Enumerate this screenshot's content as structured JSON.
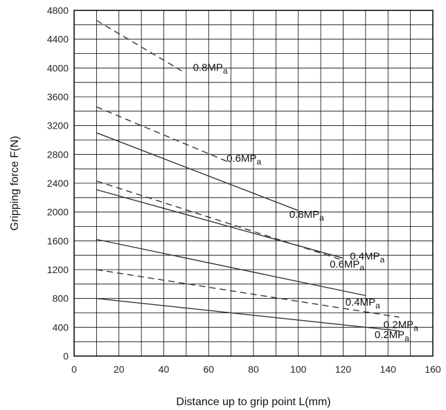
{
  "chart_data": {
    "type": "line",
    "xlabel": "Distance up to grip point  L(mm)",
    "ylabel": "Gripping force  F(N)",
    "xlim": [
      0,
      160
    ],
    "ylim": [
      0,
      4800
    ],
    "xticks": [
      0,
      20,
      40,
      60,
      80,
      100,
      120,
      140,
      160
    ],
    "yticks": [
      0,
      400,
      800,
      1200,
      1600,
      2000,
      2400,
      2800,
      3200,
      3600,
      4000,
      4400,
      4800
    ],
    "grid": true,
    "x_minor_step": 10,
    "y_minor_step": 200,
    "series": [
      {
        "style": "dashed",
        "x": [
          10,
          48
        ],
        "y": [
          4660,
          3960
        ]
      },
      {
        "style": "dashed",
        "x": [
          10,
          70
        ],
        "y": [
          3460,
          2680
        ]
      },
      {
        "style": "solid",
        "x": [
          10,
          100
        ],
        "y": [
          3100,
          2020
        ]
      },
      {
        "style": "dashed",
        "x": [
          10,
          120
        ],
        "y": [
          2430,
          1330
        ]
      },
      {
        "style": "solid",
        "x": [
          10,
          120
        ],
        "y": [
          2310,
          1360
        ]
      },
      {
        "style": "solid",
        "x": [
          10,
          130
        ],
        "y": [
          1620,
          840
        ]
      },
      {
        "style": "dashed",
        "x": [
          10,
          145
        ],
        "y": [
          1200,
          540
        ]
      },
      {
        "style": "solid",
        "x": [
          10,
          145
        ],
        "y": [
          800,
          350
        ]
      }
    ],
    "annotations": [
      {
        "main": "0.8MP",
        "sub": "a",
        "x": 53,
        "y": 3960
      },
      {
        "main": "0.6MP",
        "sub": "a",
        "x": 68,
        "y": 2700
      },
      {
        "main": "0.8MP",
        "sub": "a",
        "x": 96,
        "y": 1920
      },
      {
        "main": "0.4MP",
        "sub": "a",
        "x": 123,
        "y": 1340
      },
      {
        "main": "0.6MP",
        "sub": "a",
        "x": 114,
        "y": 1230
      },
      {
        "main": "0.4MP",
        "sub": "a",
        "x": 121,
        "y": 700
      },
      {
        "main": "0.2MP",
        "sub": "a",
        "x": 138,
        "y": 390
      },
      {
        "main": "0.2MP",
        "sub": "a",
        "x": 134,
        "y": 250
      }
    ]
  }
}
